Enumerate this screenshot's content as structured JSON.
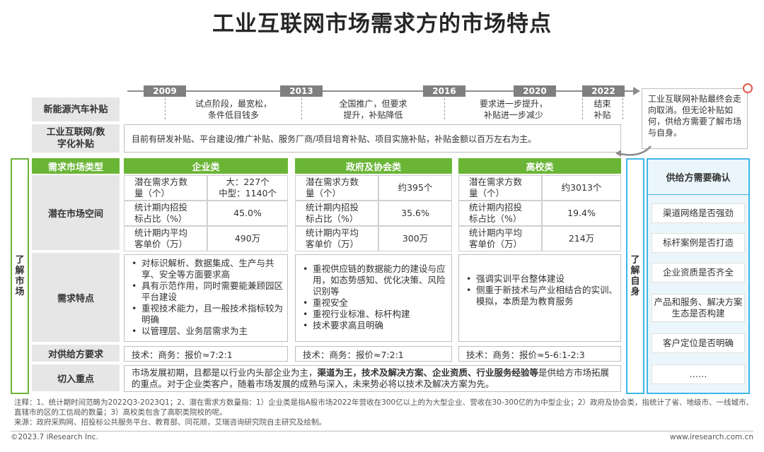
{
  "title": "工业互联网市场需求方的市场特点",
  "timeline": {
    "years": [
      "2009",
      "2013",
      "2016",
      "2020",
      "2022"
    ],
    "phases": [
      "试点阶段，最宽松，\n条件低目钱多",
      "全国推广，但要求\n提升，补贴降低",
      "要求进一步提升，\n补贴进一步减少",
      "结束\n补贴"
    ]
  },
  "rows": {
    "ev_label": "新能源汽车补贴",
    "iiot_label": "工业互联网/数\n字化补贴",
    "iiot_text": "目前有研发补贴、平台建设/推广补贴、服务厂商/项目培育补贴、项目实施补贴，补贴金额以百万左右为主。"
  },
  "callout": "工业互联网补贴最终会走向取消。但无论补贴如何，供给方需要了解市场与自身。",
  "left_bar": "了解市场",
  "right_bar": "了解自身",
  "table": {
    "header_label": "需求市场类型",
    "columns": [
      "企业类",
      "政府及协会类",
      "高校类"
    ],
    "row_labels": [
      "潜在市场空间",
      "需求特点",
      "对供给方要求",
      "切入重点"
    ],
    "metrics": {
      "enterprise": [
        {
          "k": "潜在需求方数\n量（个）",
          "v": "大：227个\n中型：1140个"
        },
        {
          "k": "统计期内招投\n标占比（%）",
          "v": "45.0%"
        },
        {
          "k": "统计期内平均\n客单价（万）",
          "v": "490万"
        }
      ],
      "gov": [
        {
          "k": "潜在需求方数\n量（个）",
          "v": "约395个"
        },
        {
          "k": "统计期内招投\n标占比（%）",
          "v": "35.6%"
        },
        {
          "k": "统计期内平均\n客单价（万）",
          "v": "300万"
        }
      ],
      "univ": [
        {
          "k": "潜在需求方数\n量（个）",
          "v": "约3013个"
        },
        {
          "k": "统计期内招投\n标占比（%）",
          "v": "19.4%"
        },
        {
          "k": "统计期内平均\n客单价（万）",
          "v": "214万"
        }
      ]
    },
    "features": {
      "enterprise": [
        "对标识解析、数据集成、生产与共享、安全等方面要求高",
        "具有示范作用，同时需要能兼顾园区平台建设",
        "重视技术能力，且一般技术指标较为明确",
        "以管理层、业务层需求为主"
      ],
      "gov": [
        "重视供应链的数据能力的建设与应用，如态势感知、优化决策、风险识别等",
        "重视安全",
        "重视行业标准、标杆构建",
        "技术要求高且明确"
      ],
      "univ": [
        "强调实训平台整体建设",
        "侧重于新技术与产业相结合的实训、模拟，本质是为教育服务"
      ]
    },
    "requirements": {
      "enterprise": "技术：商务：报价≈7:2:1",
      "gov": "技术：商务：报价≈7:2:1",
      "univ": "技术：商务：报价≈5-6:1-2:3"
    },
    "focus": {
      "part1": "市场发展初期，且都是以行业内头部企业为主，",
      "bold": "渠道为王，技术及解决方案、企业资质、行业服务经验等",
      "part2": "是供给方市场拓展的重点。对于企业类客户，随着市场发展的成熟与深入，未来势必将以技术及解决方案为先。"
    }
  },
  "right_panel": {
    "header": "供给方需要确认",
    "items": [
      "渠道网络是否强劲",
      "标杆案例是否打造",
      "企业资质是否齐全",
      "产品和服务、解决方案生态是否构建",
      "客户定位是否明确",
      "……"
    ]
  },
  "notes": {
    "note": "注释：1、统计期时间范畴为2022Q3-2023Q1；2、潜在需求方数量指：1）企业类是指A股市场2022年营收在300亿以上的为大型企业、营收在30-300亿的为中型企业；2）政府及协会类，指统计了省、地级市、一线城市、直辖市的区的工信局的数量；3）高校类包含了高职类院校的呢。",
    "source": "来源：政府采购网、招投标公共服务平台、教育部、同花顺，艾瑞咨询研究院自主研究及绘制。"
  },
  "footer": {
    "left": "©2023.7 iResearch Inc.",
    "right": "www.iresearch.com.cn"
  },
  "colors": {
    "green": "#6ab536",
    "blue": "#3fb7e8",
    "gray": "#7f7f7f"
  }
}
